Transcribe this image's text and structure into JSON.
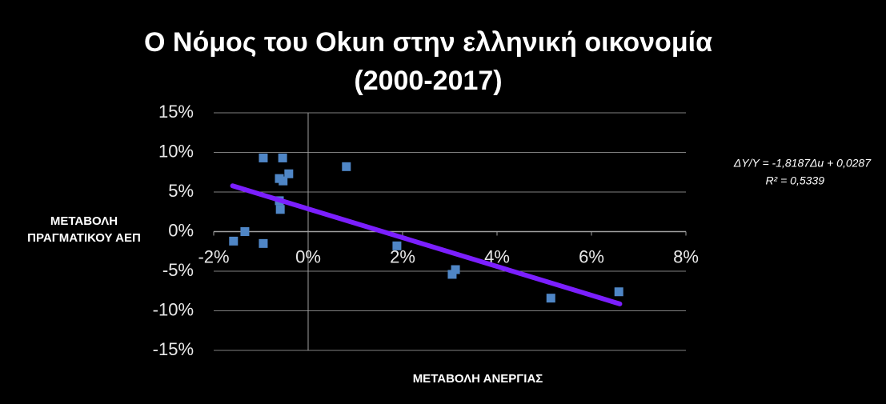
{
  "chart_data": {
    "type": "scatter",
    "title": [
      "Ο Νόμος του Okun στην ελληνική οικονομία",
      "(2000-2017)"
    ],
    "xlabel": "ΜΕΤΑΒΟΛΗ ΑΝΕΡΓΙΑΣ",
    "ylabel": [
      "ΜΕΤΑΒΟΛΗ",
      "ΠΡΑΓΜΑΤΙΚΟΥ ΑΕΠ"
    ],
    "annotations": [
      "ΔY/Y = -1,8187Δu  + 0,0287",
      "R² = 0,5339"
    ],
    "x": [
      -1.58,
      -1.34,
      -0.95,
      -0.95,
      -0.54,
      -0.61,
      -0.53,
      -0.41,
      -0.61,
      -0.59,
      0.81,
      1.88,
      3.05,
      3.12,
      5.14,
      6.58
    ],
    "values": [
      -1.2,
      0,
      9.3,
      -1.5,
      9.3,
      6.7,
      6.4,
      7.3,
      3.9,
      2.8,
      8.2,
      -1.8,
      -5.4,
      -4.8,
      -8.4,
      -7.6
    ],
    "color": "#4f86c6",
    "trendline": {
      "x": [
        -1.6,
        6.6
      ],
      "values": [
        5.78,
        -9.13
      ],
      "color": "#7b1fff"
    },
    "xlim": [
      -2,
      8
    ],
    "xticks": [
      {
        "value": -2,
        "label": "-2%"
      },
      {
        "value": 0,
        "label": "0%"
      },
      {
        "value": 2,
        "label": "2%"
      },
      {
        "value": 4,
        "label": "4%"
      },
      {
        "value": 6,
        "label": "6%"
      },
      {
        "value": 8,
        "label": "8%"
      }
    ],
    "ylim": [
      -15,
      15
    ],
    "yticks": [
      {
        "value": 15,
        "label": "15%"
      },
      {
        "value": 10,
        "label": "10%"
      },
      {
        "value": 5,
        "label": "5%"
      },
      {
        "value": 0,
        "label": "0%"
      },
      {
        "value": -5,
        "label": "-5%"
      },
      {
        "value": -10,
        "label": "-10%"
      },
      {
        "value": -15,
        "label": "-15%"
      }
    ],
    "grid": true
  }
}
